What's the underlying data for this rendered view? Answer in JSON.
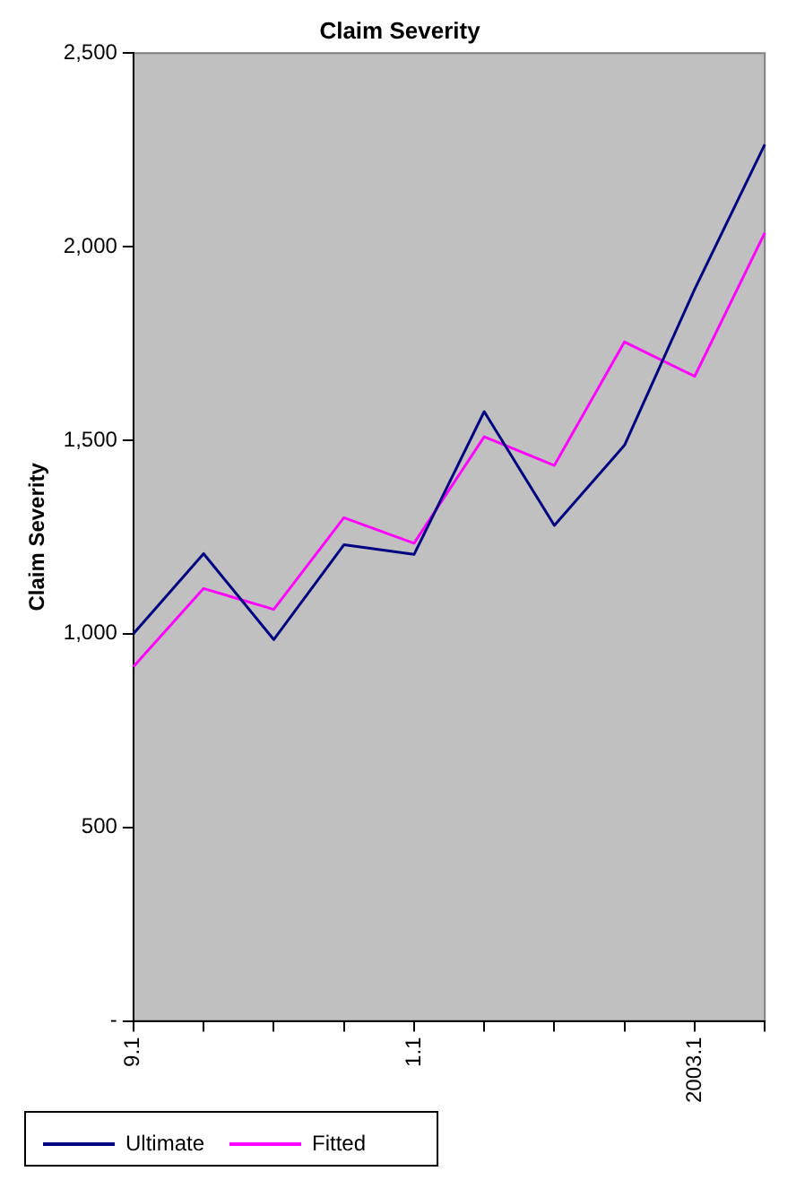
{
  "chart_data": {
    "type": "line",
    "title": "Claim Severity",
    "ylabel": "Claim Severity",
    "categories": [
      "9.1",
      null,
      null,
      null,
      "1.1",
      null,
      null,
      null,
      "2003.1",
      null
    ],
    "series": [
      {
        "name": "Ultimate",
        "color": "#000080",
        "values": [
          1000,
          1207,
          985,
          1230,
          1205,
          1574,
          1280,
          1487,
          1890,
          2264
        ]
      },
      {
        "name": "Fitted",
        "color": "#ff00ff",
        "values": [
          915,
          1117,
          1063,
          1300,
          1234,
          1509,
          1435,
          1754,
          1665,
          2036
        ]
      }
    ],
    "ylim": [
      0,
      2500
    ],
    "yticks": [
      {
        "value": 0,
        "label": "-"
      },
      {
        "value": 500,
        "label": "500"
      },
      {
        "value": 1000,
        "label": "1,000"
      },
      {
        "value": 1500,
        "label": "1,500"
      },
      {
        "value": 2000,
        "label": "2,000"
      },
      {
        "value": 2500,
        "label": "2,500"
      }
    ],
    "legend": "bottom",
    "marker": "none",
    "line_style": "solid"
  }
}
